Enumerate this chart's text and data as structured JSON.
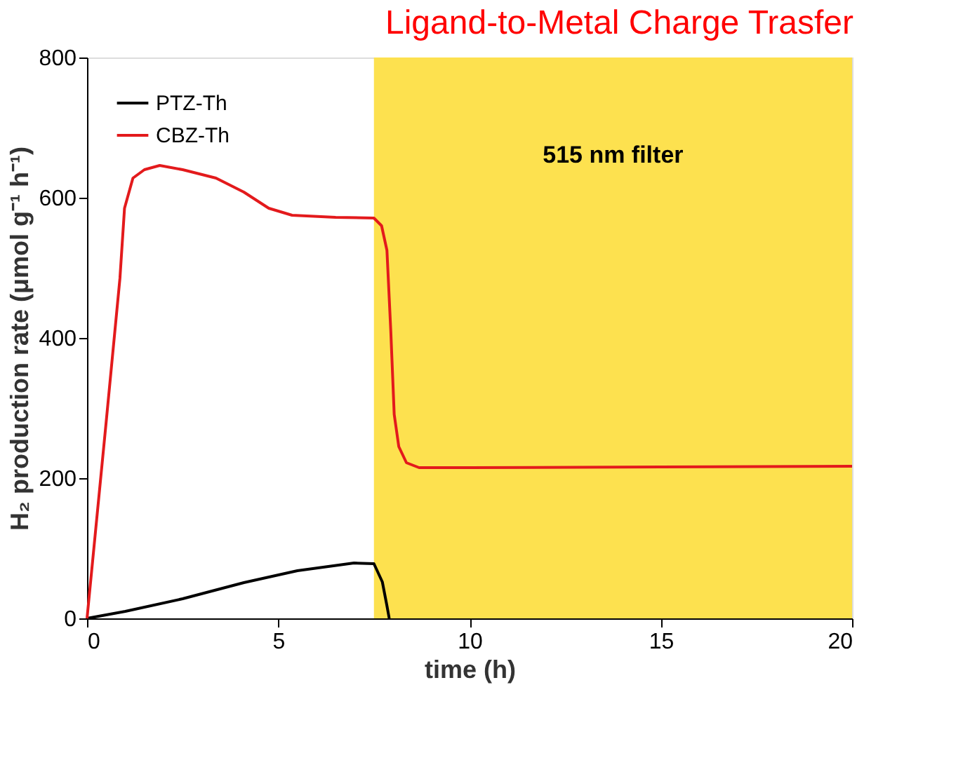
{
  "chart_data": {
    "type": "line",
    "title": "Ligand-to-Metal Charge Trasfer",
    "xlabel": "time (h)",
    "ylabel": "H₂ production rate (μmol g⁻¹ h⁻¹)",
    "xlim": [
      0,
      20
    ],
    "xticks": [
      0,
      5,
      10,
      15,
      20
    ],
    "ylim": [
      0,
      800
    ],
    "yticks": [
      0,
      200,
      400,
      600,
      800
    ],
    "grid": false,
    "legend": "top left",
    "marker": "none",
    "line_style": "solid",
    "bands": [
      {
        "axis": "x",
        "from": 7.5,
        "to": 20,
        "label": "515 nm filter",
        "color": "#fde14f"
      }
    ],
    "series": [
      {
        "name": "PTZ-Th",
        "color": "#000000",
        "x": [
          0,
          1,
          2.5,
          4.1,
          5.5,
          6.98,
          7.5,
          7.72,
          7.84,
          7.9
        ],
        "values": [
          0,
          10,
          28,
          51,
          68,
          79,
          78,
          52,
          18,
          0
        ]
      },
      {
        "name": "CBZ-Th",
        "color": "#e31a1c",
        "x": [
          0,
          0.5,
          0.86,
          0.98,
          1.2,
          1.5,
          1.9,
          2.5,
          3.37,
          4.1,
          4.75,
          5.36,
          6.5,
          7.5,
          7.7,
          7.84,
          7.94,
          8.03,
          8.15,
          8.35,
          8.68,
          10,
          15,
          20
        ],
        "values": [
          0,
          280,
          485,
          585,
          628,
          640,
          646,
          640,
          628,
          608,
          585,
          575,
          572,
          571,
          560,
          525,
          411,
          291,
          245,
          222,
          215,
          215,
          216,
          217
        ]
      }
    ]
  }
}
